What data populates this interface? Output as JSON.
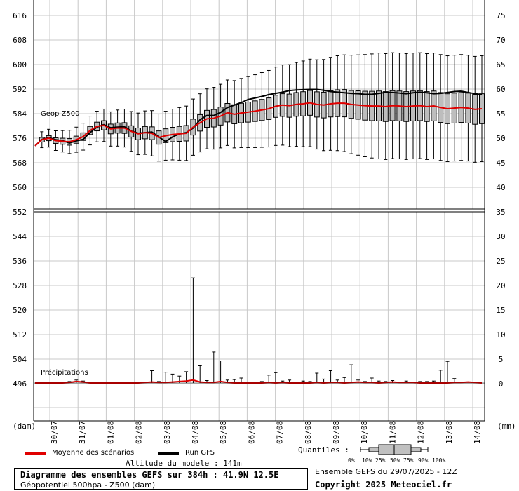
{
  "chart_data": {
    "type": "box-line",
    "top_panel": {
      "label": "Geop Z500",
      "left_ticks": [
        "616",
        "608",
        "600",
        "592",
        "584",
        "576",
        "568",
        "560"
      ],
      "right_ticks": [
        "75",
        "70",
        "65",
        "60",
        "55",
        "50",
        "45",
        "40"
      ],
      "ylim": [
        552,
        620
      ]
    },
    "bottom_panel": {
      "label": "Précipitations",
      "left_ticks": [
        "552",
        "544",
        "536",
        "528",
        "520",
        "512",
        "504",
        "496"
      ],
      "right_ticks": [
        "35",
        "30",
        "25",
        "20",
        "15",
        "10",
        "5",
        "0"
      ],
      "ylim": [
        0,
        35
      ]
    },
    "left_unit": "(dam)",
    "right_unit": "(mm)",
    "x_labels": [
      "30/07",
      "31/07",
      "01/08",
      "02/08",
      "03/08",
      "04/08",
      "05/08",
      "06/08",
      "07/08",
      "08/08",
      "09/08",
      "10/08",
      "11/08",
      "12/08",
      "13/08",
      "14/08"
    ],
    "series": [
      {
        "name": "Moyenne des scénarios",
        "color": "#e00000",
        "values": [
          573.5,
          575.5,
          576,
          575.2,
          575,
          574.8,
          575.5,
          576.5,
          578.5,
          579.8,
          580.2,
          579,
          579.3,
          579.3,
          578.2,
          577.4,
          577.8,
          577.6,
          576.2,
          576.8,
          577.2,
          577.4,
          577.6,
          579.6,
          581,
          582.3,
          582.5,
          583.2,
          584.3,
          583.8,
          584.2,
          584.5,
          584.8,
          585.2,
          585.6,
          586.4,
          586.8,
          586.6,
          587,
          587.2,
          587.5,
          587,
          586.8,
          587.2,
          587.4,
          587.4,
          587,
          586.8,
          586.6,
          586.5,
          586.5,
          586.3,
          586.6,
          586.5,
          586.3,
          586.5,
          586.6,
          586.3,
          586.5,
          586,
          585.6,
          585.8,
          586,
          585.8,
          585.4,
          585.6
        ]
      },
      {
        "name": "Run GFS",
        "color": "#000000",
        "values": [
          573.5,
          575.6,
          576.2,
          575.5,
          575.2,
          574.4,
          575.1,
          575.6,
          577.8,
          579.6,
          580.4,
          579.4,
          579.6,
          579.7,
          578.3,
          577.6,
          577.8,
          578,
          576.4,
          574.9,
          576.4,
          577.4,
          577.8,
          579.3,
          582,
          583.4,
          583.4,
          584.4,
          586,
          586.8,
          587.6,
          588.6,
          589.1,
          589.6,
          590.2,
          590.6,
          591,
          591.5,
          591.7,
          591.8,
          591.9,
          591.9,
          591.6,
          591.2,
          591,
          590.8,
          590.6,
          590.5,
          590.3,
          590.3,
          590.6,
          590.9,
          590.9,
          590.7,
          590.5,
          590.8,
          591,
          590.8,
          590.5,
          590.6,
          590.9,
          591.2,
          591.3,
          590.9,
          590.5,
          590.2
        ]
      }
    ],
    "precip_mean": [
      0,
      0,
      0,
      0,
      0,
      0.1,
      0.3,
      0.2,
      0,
      0,
      0,
      0,
      0,
      0,
      0,
      0,
      0.1,
      0.2,
      0.1,
      0.1,
      0.2,
      0.3,
      0.4,
      0.6,
      0.2,
      0.1,
      0.1,
      0.3,
      0.1,
      0,
      0,
      0,
      0,
      0,
      0.1,
      0,
      0.1,
      0,
      0,
      0,
      0,
      0.1,
      0,
      0.1,
      0.1,
      0,
      0.1,
      0.2,
      0.1,
      0.1,
      0,
      0.1,
      0.2,
      0.1,
      0.1,
      0.1,
      0,
      0,
      0,
      0,
      0,
      0.1,
      0.1,
      0.2,
      0.1,
      0
    ],
    "precip_max": [
      0,
      0,
      0,
      0,
      0,
      0.3,
      0.6,
      0.4,
      0,
      0,
      0,
      0,
      0,
      0,
      0,
      0,
      0.2,
      2.5,
      0.3,
      2.2,
      1.8,
      1.4,
      2.3,
      21.4,
      3.5,
      0.5,
      6.3,
      4.5,
      0.6,
      0.7,
      1,
      0.1,
      0.2,
      0.3,
      1.6,
      2.1,
      0.4,
      0.6,
      0.2,
      0.4,
      0.3,
      2,
      0.8,
      2.5,
      0.6,
      1.1,
      3.7,
      0.6,
      0.3,
      1,
      0.4,
      0.3,
      0.5,
      0.2,
      0.4,
      0.2,
      0.3,
      0.3,
      0.4,
      2.6,
      4.4,
      0.9,
      0,
      0,
      0,
      0
    ],
    "legend_title": "Quantiles :",
    "quantile_labels": [
      "0%",
      "10%",
      "25%",
      "50%",
      "75%",
      "90%",
      "100%"
    ],
    "axis_note": "Altitude du modele : 141m",
    "title_line1": "Diagramme des ensembles GEFS sur 384h : 41.9N 12.5E",
    "title_line2": "Géopotentiel 500hpa - Z500 (dam)",
    "run_info": "Ensemble GEFS du 29/07/2025 - 12Z",
    "copyright": "Copyright 2025 Meteociel.fr"
  },
  "legend": {
    "mean_label": "Moyenne des scénarios",
    "gfs_label": "Run GFS"
  }
}
